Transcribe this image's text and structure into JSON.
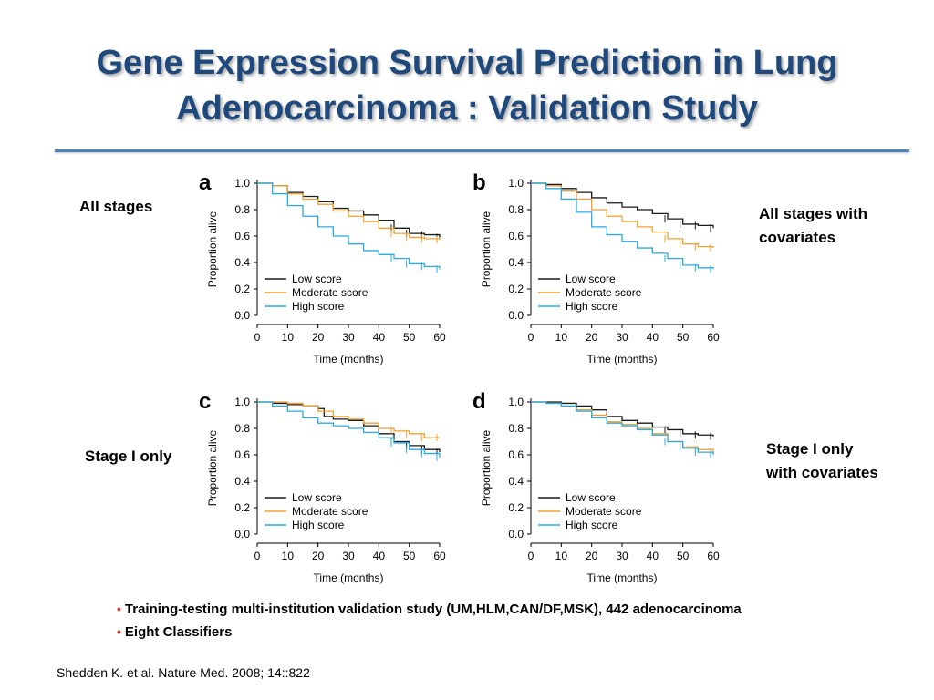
{
  "slide": {
    "title_line1": "Gene Expression Survival Prediction in Lung",
    "title_line2": "Adenocarcinoma : Validation Study",
    "labels": {
      "a": [
        "All stages"
      ],
      "b": [
        "All stages with",
        "covariates"
      ],
      "c": [
        "Stage I only"
      ],
      "d": [
        "Stage I only",
        "with covariates"
      ]
    },
    "bullets": [
      "Training-testing multi-institution validation study (UM,HLM,CAN/DF,MSK), 442 adenocarcinoma",
      "Eight Classifiers"
    ],
    "citation": "Shedden K. et al. Nature Med. 2008; 14::822"
  },
  "colors": {
    "title": "#1f497d",
    "rule": "#4f81bd",
    "bullet": "#c0392b",
    "low": "#1a1a1a",
    "moderate": "#f0a030",
    "high": "#29abe2"
  },
  "chart_data": [
    {
      "panel": "a",
      "type": "line",
      "xlabel": "Time (months)",
      "ylabel": "Proportion alive",
      "xlim": [
        0,
        60
      ],
      "ylim": [
        0,
        1
      ],
      "xticks": [
        0,
        10,
        20,
        30,
        40,
        50,
        60
      ],
      "yticks": [
        0.0,
        0.2,
        0.4,
        0.6,
        0.8,
        1.0
      ],
      "legend": "bottom-left",
      "series": [
        {
          "name": "Low score",
          "color": "#1a1a1a",
          "points": [
            [
              0,
              1.0
            ],
            [
              5,
              0.98
            ],
            [
              10,
              0.93
            ],
            [
              15,
              0.9
            ],
            [
              20,
              0.86
            ],
            [
              25,
              0.81
            ],
            [
              30,
              0.79
            ],
            [
              35,
              0.76
            ],
            [
              40,
              0.72
            ],
            [
              45,
              0.66
            ],
            [
              50,
              0.62
            ],
            [
              55,
              0.61
            ],
            [
              60,
              0.59
            ]
          ]
        },
        {
          "name": "Moderate score",
          "color": "#f0a030",
          "points": [
            [
              0,
              1.0
            ],
            [
              5,
              0.98
            ],
            [
              10,
              0.92
            ],
            [
              15,
              0.88
            ],
            [
              20,
              0.84
            ],
            [
              25,
              0.79
            ],
            [
              30,
              0.75
            ],
            [
              35,
              0.71
            ],
            [
              40,
              0.66
            ],
            [
              45,
              0.62
            ],
            [
              50,
              0.59
            ],
            [
              55,
              0.58
            ],
            [
              60,
              0.57
            ]
          ]
        },
        {
          "name": "High score",
          "color": "#29abe2",
          "points": [
            [
              0,
              1.0
            ],
            [
              5,
              0.92
            ],
            [
              10,
              0.83
            ],
            [
              15,
              0.75
            ],
            [
              20,
              0.67
            ],
            [
              25,
              0.6
            ],
            [
              30,
              0.54
            ],
            [
              35,
              0.49
            ],
            [
              40,
              0.46
            ],
            [
              45,
              0.43
            ],
            [
              50,
              0.39
            ],
            [
              55,
              0.37
            ],
            [
              60,
              0.35
            ]
          ]
        }
      ]
    },
    {
      "panel": "b",
      "type": "line",
      "xlabel": "Time (months)",
      "ylabel": "Proportion alive",
      "xlim": [
        0,
        60
      ],
      "ylim": [
        0,
        1
      ],
      "xticks": [
        0,
        10,
        20,
        30,
        40,
        50,
        60
      ],
      "yticks": [
        0.0,
        0.2,
        0.4,
        0.6,
        0.8,
        1.0
      ],
      "legend": "bottom-left",
      "series": [
        {
          "name": "Low score",
          "color": "#1a1a1a",
          "points": [
            [
              0,
              1.0
            ],
            [
              5,
              0.99
            ],
            [
              10,
              0.96
            ],
            [
              15,
              0.93
            ],
            [
              20,
              0.89
            ],
            [
              25,
              0.85
            ],
            [
              30,
              0.82
            ],
            [
              35,
              0.8
            ],
            [
              40,
              0.77
            ],
            [
              45,
              0.73
            ],
            [
              50,
              0.69
            ],
            [
              55,
              0.68
            ],
            [
              60,
              0.66
            ]
          ]
        },
        {
          "name": "Moderate score",
          "color": "#f0a030",
          "points": [
            [
              0,
              1.0
            ],
            [
              5,
              0.98
            ],
            [
              10,
              0.94
            ],
            [
              15,
              0.88
            ],
            [
              20,
              0.8
            ],
            [
              25,
              0.75
            ],
            [
              30,
              0.71
            ],
            [
              35,
              0.67
            ],
            [
              40,
              0.63
            ],
            [
              45,
              0.58
            ],
            [
              50,
              0.54
            ],
            [
              55,
              0.52
            ],
            [
              60,
              0.51
            ]
          ]
        },
        {
          "name": "High score",
          "color": "#29abe2",
          "points": [
            [
              0,
              1.0
            ],
            [
              5,
              0.96
            ],
            [
              10,
              0.88
            ],
            [
              15,
              0.78
            ],
            [
              20,
              0.67
            ],
            [
              25,
              0.61
            ],
            [
              30,
              0.56
            ],
            [
              35,
              0.51
            ],
            [
              40,
              0.47
            ],
            [
              45,
              0.43
            ],
            [
              50,
              0.38
            ],
            [
              55,
              0.36
            ],
            [
              60,
              0.35
            ]
          ]
        }
      ]
    },
    {
      "panel": "c",
      "type": "line",
      "xlabel": "Time (months)",
      "ylabel": "Proportion alive",
      "xlim": [
        0,
        60
      ],
      "ylim": [
        0,
        1
      ],
      "xticks": [
        0,
        10,
        20,
        30,
        40,
        50,
        60
      ],
      "yticks": [
        0.0,
        0.2,
        0.4,
        0.6,
        0.8,
        1.0
      ],
      "legend": "bottom-left",
      "series": [
        {
          "name": "Low score",
          "color": "#1a1a1a",
          "points": [
            [
              0,
              1.0
            ],
            [
              5,
              0.99
            ],
            [
              10,
              0.98
            ],
            [
              15,
              0.97
            ],
            [
              20,
              0.95
            ],
            [
              22,
              0.89
            ],
            [
              25,
              0.87
            ],
            [
              30,
              0.86
            ],
            [
              35,
              0.82
            ],
            [
              40,
              0.76
            ],
            [
              45,
              0.7
            ],
            [
              50,
              0.67
            ],
            [
              55,
              0.64
            ],
            [
              60,
              0.62
            ]
          ]
        },
        {
          "name": "Moderate score",
          "color": "#f0a030",
          "points": [
            [
              0,
              1.0
            ],
            [
              5,
              1.0
            ],
            [
              10,
              0.99
            ],
            [
              15,
              0.97
            ],
            [
              20,
              0.93
            ],
            [
              25,
              0.89
            ],
            [
              30,
              0.87
            ],
            [
              35,
              0.84
            ],
            [
              40,
              0.8
            ],
            [
              45,
              0.78
            ],
            [
              50,
              0.76
            ],
            [
              55,
              0.73
            ],
            [
              60,
              0.73
            ]
          ]
        },
        {
          "name": "High score",
          "color": "#29abe2",
          "points": [
            [
              0,
              1.0
            ],
            [
              5,
              0.97
            ],
            [
              10,
              0.93
            ],
            [
              15,
              0.88
            ],
            [
              20,
              0.84
            ],
            [
              25,
              0.82
            ],
            [
              30,
              0.8
            ],
            [
              35,
              0.77
            ],
            [
              40,
              0.73
            ],
            [
              45,
              0.69
            ],
            [
              50,
              0.64
            ],
            [
              55,
              0.61
            ],
            [
              60,
              0.58
            ]
          ]
        }
      ]
    },
    {
      "panel": "d",
      "type": "line",
      "xlabel": "Time (months)",
      "ylabel": "Proportion alive",
      "xlim": [
        0,
        60
      ],
      "ylim": [
        0,
        1
      ],
      "xticks": [
        0,
        10,
        20,
        30,
        40,
        50,
        60
      ],
      "yticks": [
        0.0,
        0.2,
        0.4,
        0.6,
        0.8,
        1.0
      ],
      "legend": "bottom-left",
      "series": [
        {
          "name": "Low score",
          "color": "#1a1a1a",
          "points": [
            [
              0,
              1.0
            ],
            [
              5,
              1.0
            ],
            [
              10,
              0.99
            ],
            [
              15,
              0.97
            ],
            [
              20,
              0.94
            ],
            [
              25,
              0.89
            ],
            [
              30,
              0.86
            ],
            [
              35,
              0.84
            ],
            [
              40,
              0.81
            ],
            [
              45,
              0.79
            ],
            [
              50,
              0.76
            ],
            [
              55,
              0.75
            ],
            [
              60,
              0.74
            ]
          ]
        },
        {
          "name": "Moderate score",
          "color": "#f0a030",
          "points": [
            [
              0,
              1.0
            ],
            [
              5,
              0.99
            ],
            [
              10,
              0.97
            ],
            [
              15,
              0.94
            ],
            [
              20,
              0.9
            ],
            [
              25,
              0.85
            ],
            [
              30,
              0.83
            ],
            [
              35,
              0.8
            ],
            [
              40,
              0.76
            ],
            [
              45,
              0.7
            ],
            [
              50,
              0.66
            ],
            [
              55,
              0.64
            ],
            [
              60,
              0.62
            ]
          ]
        },
        {
          "name": "High score",
          "color": "#29abe2",
          "points": [
            [
              0,
              1.0
            ],
            [
              5,
              0.99
            ],
            [
              10,
              0.97
            ],
            [
              15,
              0.93
            ],
            [
              20,
              0.88
            ],
            [
              25,
              0.84
            ],
            [
              30,
              0.82
            ],
            [
              35,
              0.79
            ],
            [
              40,
              0.75
            ],
            [
              45,
              0.7
            ],
            [
              50,
              0.65
            ],
            [
              55,
              0.62
            ],
            [
              60,
              0.6
            ]
          ]
        }
      ]
    }
  ]
}
